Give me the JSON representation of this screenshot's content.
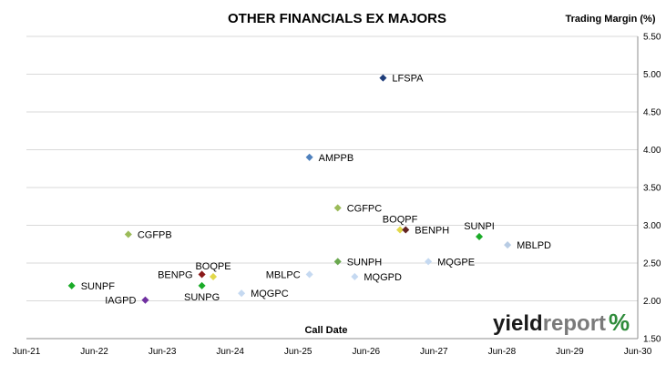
{
  "chart_data": {
    "type": "scatter",
    "title": "OTHER FINANCIALS EX MAJORS",
    "ylabel": "Trading Margin (%)",
    "xlabel": "Call Date",
    "y_axis_side": "right",
    "ylim": [
      1.5,
      5.5
    ],
    "y_ticks": [
      "1.50",
      "2.00",
      "2.50",
      "3.00",
      "3.50",
      "4.00",
      "4.50",
      "5.00",
      "5.50"
    ],
    "x_ticks": [
      "Jun-21",
      "Jun-22",
      "Jun-23",
      "Jun-24",
      "Jun-25",
      "Jun-26",
      "Jun-27",
      "Jun-28",
      "Jun-29",
      "Jun-30"
    ],
    "xlim": [
      "2021-06",
      "2030-06"
    ],
    "grid": "horizontal",
    "points": [
      {
        "name": "LFSPA",
        "x": "2026-09",
        "y": 4.95,
        "color": "#1f3d7a",
        "label_side": "right"
      },
      {
        "name": "AMPPB",
        "x": "2025-08",
        "y": 3.9,
        "color": "#4f81bd",
        "label_side": "right"
      },
      {
        "name": "CGFPC",
        "x": "2026-01",
        "y": 3.23,
        "color": "#9bbb59",
        "label_side": "right"
      },
      {
        "name": "CGFPB",
        "x": "2022-12",
        "y": 2.88,
        "color": "#9bbb59",
        "label_side": "right"
      },
      {
        "name": "BOQPF",
        "x": "2026-12",
        "y": 2.94,
        "color": "#e2d84a",
        "label_side": "top"
      },
      {
        "name": "BENPH",
        "x": "2027-01",
        "y": 2.94,
        "color": "#632423",
        "label_side": "right"
      },
      {
        "name": "SUNPI",
        "x": "2028-02",
        "y": 2.85,
        "color": "#1aab28",
        "label_side": "top"
      },
      {
        "name": "MBLPD",
        "x": "2028-07",
        "y": 2.74,
        "color": "#b8cce4",
        "label_side": "right"
      },
      {
        "name": "SUNPH",
        "x": "2026-01",
        "y": 2.52,
        "color": "#6aa84f",
        "label_side": "right"
      },
      {
        "name": "MQGPE",
        "x": "2027-05",
        "y": 2.52,
        "color": "#c5d9f1",
        "label_side": "right"
      },
      {
        "name": "MBLPC",
        "x": "2025-08",
        "y": 2.35,
        "color": "#c5d9f1",
        "label_side": "left"
      },
      {
        "name": "MQGPD",
        "x": "2026-04",
        "y": 2.32,
        "color": "#c5d9f1",
        "label_side": "right"
      },
      {
        "name": "BOQPE",
        "x": "2024-03",
        "y": 2.32,
        "color": "#e2d84a",
        "label_side": "top"
      },
      {
        "name": "BENPG",
        "x": "2024-01",
        "y": 2.35,
        "color": "#8b1a1a",
        "label_side": "left"
      },
      {
        "name": "SUNPG",
        "x": "2024-01",
        "y": 2.2,
        "color": "#1aab28",
        "label_side": "bottom"
      },
      {
        "name": "MQGPC",
        "x": "2024-08",
        "y": 2.1,
        "color": "#c5d9f1",
        "label_side": "right"
      },
      {
        "name": "SUNPF",
        "x": "2022-02",
        "y": 2.2,
        "color": "#1aab28",
        "label_side": "right"
      },
      {
        "name": "IAGPD",
        "x": "2023-03",
        "y": 2.01,
        "color": "#7030a0",
        "label_side": "left"
      }
    ]
  },
  "logo": {
    "part_a": "yield",
    "part_b": "report",
    "part_c": "%"
  }
}
